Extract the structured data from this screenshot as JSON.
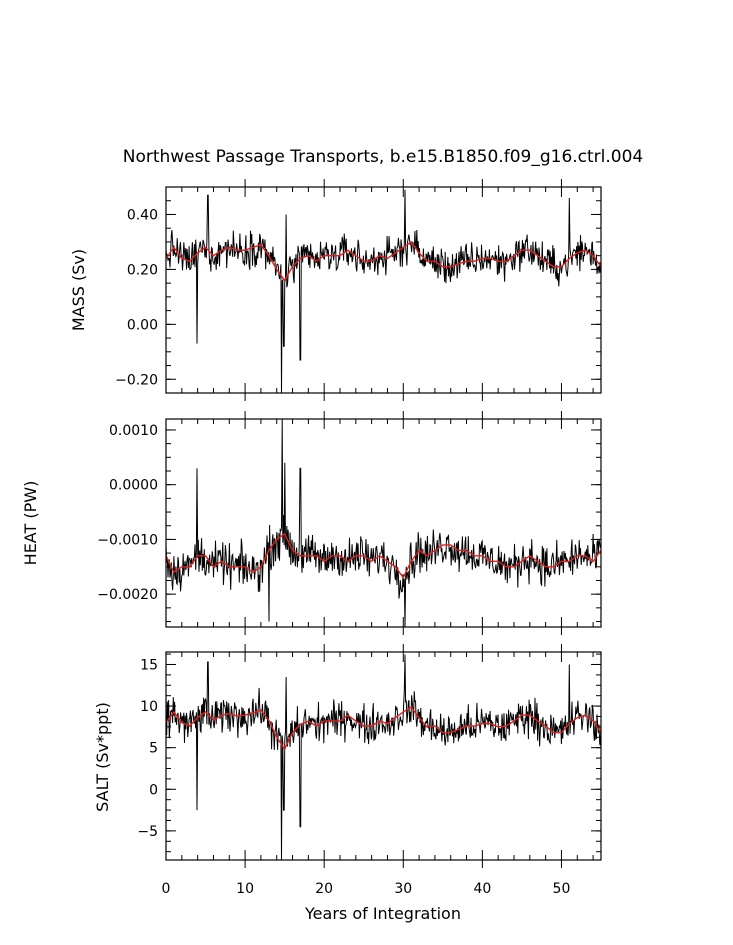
{
  "chart_data": {
    "type": "line",
    "title": "Northwest Passage Transports, b.e15.B1850.f09_g16.ctrl.004",
    "xlabel": "Years of Integration",
    "xlim": [
      0,
      55
    ],
    "xticks": [
      0,
      10,
      20,
      30,
      40,
      50
    ],
    "x_tick_labels": [
      "0",
      "10",
      "20",
      "30",
      "40",
      "50"
    ],
    "panels": [
      {
        "id": "mass",
        "ylabel": "MASS (Sv)",
        "ylim": [
          -0.25,
          0.5
        ],
        "yticks": [
          -0.2,
          0.0,
          0.2,
          0.4
        ],
        "y_tick_labels": [
          "−0.20",
          "0.00",
          "0.20",
          "0.40"
        ],
        "series": [
          {
            "name": "monthly",
            "color": "#000000",
            "mean": 0.25,
            "spread": 0.06,
            "spikes": [
              [
                3.9,
                -0.07
              ],
              [
                14.6,
                -0.26
              ],
              [
                14.9,
                -0.08
              ],
              [
                15.2,
                0.4
              ],
              [
                17.0,
                -0.13
              ],
              [
                30.2,
                0.49
              ],
              [
                5.3,
                0.47
              ],
              [
                51.0,
                0.46
              ]
            ]
          },
          {
            "name": "smoothed",
            "color": "#e02020",
            "x": [
              0,
              1,
              2,
              3,
              4,
              5,
              6,
              7,
              8,
              9,
              10,
              11,
              12,
              13,
              14,
              15,
              16,
              17,
              18,
              19,
              20,
              21,
              22,
              23,
              24,
              25,
              26,
              27,
              28,
              29,
              30,
              31,
              32,
              33,
              34,
              35,
              36,
              37,
              38,
              39,
              40,
              41,
              42,
              43,
              44,
              45,
              46,
              47,
              48,
              49,
              50,
              51,
              52,
              53,
              54,
              55
            ],
            "values": [
              0.24,
              0.28,
              0.24,
              0.23,
              0.26,
              0.28,
              0.25,
              0.27,
              0.28,
              0.27,
              0.27,
              0.28,
              0.29,
              0.25,
              0.2,
              0.16,
              0.21,
              0.24,
              0.25,
              0.23,
              0.25,
              0.25,
              0.25,
              0.27,
              0.25,
              0.23,
              0.23,
              0.25,
              0.24,
              0.26,
              0.28,
              0.3,
              0.26,
              0.23,
              0.23,
              0.21,
              0.21,
              0.22,
              0.23,
              0.23,
              0.24,
              0.24,
              0.23,
              0.23,
              0.25,
              0.27,
              0.27,
              0.25,
              0.23,
              0.21,
              0.21,
              0.24,
              0.26,
              0.27,
              0.25,
              0.21
            ]
          }
        ]
      },
      {
        "id": "heat",
        "ylabel": "HEAT (PW)",
        "ylim": [
          -0.0026,
          0.0012
        ],
        "yticks": [
          -0.002,
          -0.001,
          0.0,
          0.001
        ],
        "y_tick_labels": [
          "−0.0020",
          "−0.0010",
          "0.0000",
          "0.0010"
        ],
        "series": [
          {
            "name": "monthly",
            "color": "#000000",
            "mean": -0.0014,
            "spread": 0.00035,
            "spikes": [
              [
                3.9,
                0.0003
              ],
              [
                14.7,
                0.0012
              ],
              [
                15.0,
                0.0004
              ],
              [
                17.0,
                0.0003
              ],
              [
                30.2,
                -0.0026
              ],
              [
                13.0,
                -0.0025
              ]
            ]
          },
          {
            "name": "smoothed",
            "color": "#e02020",
            "x": [
              0,
              1,
              2,
              3,
              4,
              5,
              6,
              7,
              8,
              9,
              10,
              11,
              12,
              13,
              14,
              15,
              16,
              17,
              18,
              19,
              20,
              21,
              22,
              23,
              24,
              25,
              26,
              27,
              28,
              29,
              30,
              31,
              32,
              33,
              34,
              35,
              36,
              37,
              38,
              39,
              40,
              41,
              42,
              43,
              44,
              45,
              46,
              47,
              48,
              49,
              50,
              51,
              52,
              53,
              54,
              55
            ],
            "values": [
              -0.0013,
              -0.0016,
              -0.0015,
              -0.0015,
              -0.0013,
              -0.0013,
              -0.0015,
              -0.0014,
              -0.0015,
              -0.0015,
              -0.0015,
              -0.0016,
              -0.0015,
              -0.0012,
              -0.001,
              -0.0009,
              -0.0012,
              -0.0013,
              -0.0013,
              -0.0013,
              -0.0014,
              -0.0013,
              -0.0013,
              -0.0014,
              -0.0013,
              -0.0013,
              -0.0014,
              -0.0013,
              -0.0014,
              -0.0015,
              -0.0017,
              -0.0014,
              -0.0012,
              -0.0013,
              -0.0012,
              -0.0011,
              -0.0011,
              -0.0012,
              -0.0012,
              -0.0013,
              -0.0013,
              -0.0014,
              -0.0014,
              -0.0015,
              -0.0015,
              -0.0014,
              -0.0013,
              -0.0014,
              -0.0015,
              -0.0015,
              -0.0014,
              -0.0014,
              -0.0013,
              -0.0013,
              -0.0014,
              -0.0012
            ]
          }
        ]
      },
      {
        "id": "salt",
        "ylabel": "SALT (Sv*ppt)",
        "ylim": [
          -8.5,
          16.5
        ],
        "yticks": [
          -5,
          0,
          5,
          10,
          15
        ],
        "y_tick_labels": [
          "−5",
          "0",
          "5",
          "10",
          "15"
        ],
        "series": [
          {
            "name": "monthly",
            "color": "#000000",
            "mean": 8.2,
            "spread": 2.1,
            "spikes": [
              [
                3.9,
                -2.5
              ],
              [
                14.6,
                -8.5
              ],
              [
                14.9,
                -2.5
              ],
              [
                15.2,
                13.5
              ],
              [
                17.0,
                -4.5
              ],
              [
                30.2,
                16.2
              ],
              [
                5.3,
                15.3
              ],
              [
                51.0,
                15.0
              ]
            ]
          },
          {
            "name": "smoothed",
            "color": "#e02020",
            "x": [
              0,
              1,
              2,
              3,
              4,
              5,
              6,
              7,
              8,
              9,
              10,
              11,
              12,
              13,
              14,
              15,
              16,
              17,
              18,
              19,
              20,
              21,
              22,
              23,
              24,
              25,
              26,
              27,
              28,
              29,
              30,
              31,
              32,
              33,
              34,
              35,
              36,
              37,
              38,
              39,
              40,
              41,
              42,
              43,
              44,
              45,
              46,
              47,
              48,
              49,
              50,
              51,
              52,
              53,
              54,
              55
            ],
            "values": [
              8.0,
              9.3,
              8.0,
              7.6,
              8.6,
              9.3,
              8.3,
              8.9,
              9.1,
              8.8,
              8.9,
              9.2,
              9.5,
              8.3,
              6.3,
              4.8,
              6.8,
              7.8,
              8.2,
              7.6,
              8.2,
              8.2,
              8.2,
              8.9,
              8.2,
              7.6,
              7.6,
              8.2,
              7.9,
              8.6,
              9.3,
              9.9,
              8.6,
              7.5,
              7.6,
              6.8,
              6.8,
              7.2,
              7.6,
              7.6,
              7.9,
              7.9,
              7.5,
              7.6,
              8.2,
              8.9,
              8.9,
              8.2,
              7.6,
              6.8,
              6.8,
              7.9,
              8.6,
              8.9,
              8.2,
              6.8
            ]
          }
        ]
      }
    ]
  }
}
